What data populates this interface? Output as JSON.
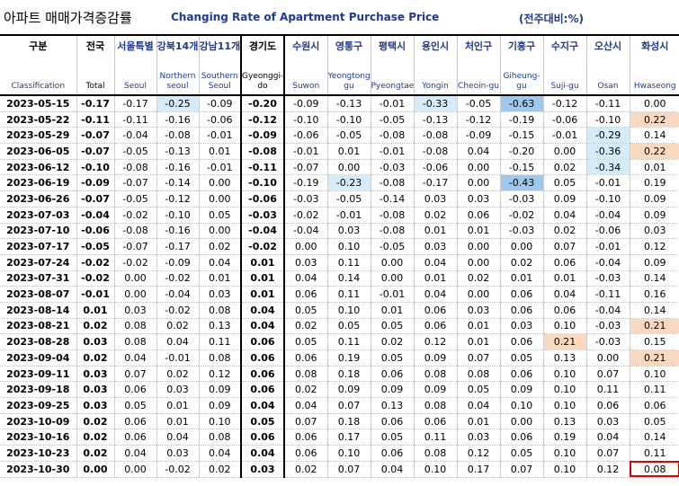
{
  "title": {
    "korean": "아파트 매매가격증감률",
    "english": "Changing Rate of Apartment Purchase Price",
    "unit": "(전주대비:%)"
  },
  "chart_data": {
    "type": "table",
    "columns": [
      {
        "ko": "구분",
        "en": "Classification"
      },
      {
        "ko": "전국",
        "en": "Total"
      },
      {
        "ko": "서울특별",
        "en": "Seoul"
      },
      {
        "ko": "강북14개",
        "en": "Northern seoul"
      },
      {
        "ko": "강남11개",
        "en": "Southern Seoul"
      },
      {
        "ko": "경기도",
        "en": "Gyeonggi-do"
      },
      {
        "ko": "수원시",
        "en": "Suwon"
      },
      {
        "ko": "영통구",
        "en": "Yeongtong-gu"
      },
      {
        "ko": "평택시",
        "en": "Pyeongtaek"
      },
      {
        "ko": "용인시",
        "en": "Yongin"
      },
      {
        "ko": "처인구",
        "en": "Cheoin-gu"
      },
      {
        "ko": "기흥구",
        "en": "Giheung-gu"
      },
      {
        "ko": "수지구",
        "en": "Suji-gu"
      },
      {
        "ko": "오산시",
        "en": "Osan"
      },
      {
        "ko": "화성시",
        "en": "Hwaseong"
      }
    ],
    "rows": [
      {
        "date": "2023-05-15",
        "values": [
          "-0.17",
          "-0.17",
          "-0.25",
          "-0.09",
          "-0.20",
          "-0.09",
          "-0.13",
          "-0.01",
          "-0.33",
          "-0.05",
          "-0.63",
          "-0.12",
          "-0.11",
          "0.00"
        ]
      },
      {
        "date": "2023-05-22",
        "values": [
          "-0.11",
          "-0.11",
          "-0.16",
          "-0.06",
          "-0.12",
          "-0.10",
          "-0.10",
          "-0.05",
          "-0.13",
          "-0.12",
          "-0.19",
          "-0.06",
          "-0.10",
          "0.22"
        ]
      },
      {
        "date": "2023-05-29",
        "values": [
          "-0.07",
          "-0.04",
          "-0.08",
          "-0.01",
          "-0.09",
          "-0.06",
          "-0.05",
          "-0.08",
          "-0.08",
          "-0.09",
          "-0.15",
          "-0.01",
          "-0.29",
          "0.14"
        ]
      },
      {
        "date": "2023-06-05",
        "values": [
          "-0.07",
          "-0.05",
          "-0.13",
          "0.01",
          "-0.08",
          "-0.01",
          "0.01",
          "-0.01",
          "-0.08",
          "0.04",
          "-0.20",
          "0.00",
          "-0.36",
          "0.22"
        ]
      },
      {
        "date": "2023-06-12",
        "values": [
          "-0.10",
          "-0.08",
          "-0.16",
          "-0.01",
          "-0.11",
          "-0.07",
          "0.00",
          "-0.03",
          "-0.06",
          "0.00",
          "-0.15",
          "0.02",
          "-0.34",
          "0.01"
        ]
      },
      {
        "date": "2023-06-19",
        "values": [
          "-0.09",
          "-0.07",
          "-0.14",
          "0.00",
          "-0.10",
          "-0.19",
          "-0.23",
          "-0.08",
          "-0.17",
          "0.00",
          "-0.43",
          "0.05",
          "-0.01",
          "0.19"
        ]
      },
      {
        "date": "2023-06-26",
        "values": [
          "-0.07",
          "-0.05",
          "-0.12",
          "0.00",
          "-0.06",
          "-0.03",
          "-0.05",
          "-0.14",
          "0.03",
          "0.03",
          "-0.03",
          "0.09",
          "-0.10",
          "0.09"
        ]
      },
      {
        "date": "2023-07-03",
        "values": [
          "-0.04",
          "-0.02",
          "-0.10",
          "0.05",
          "-0.03",
          "-0.02",
          "-0.01",
          "-0.08",
          "0.02",
          "0.06",
          "-0.02",
          "0.04",
          "-0.04",
          "0.09"
        ]
      },
      {
        "date": "2023-07-10",
        "values": [
          "-0.06",
          "-0.08",
          "-0.16",
          "0.00",
          "-0.04",
          "-0.04",
          "0.03",
          "-0.08",
          "0.01",
          "0.01",
          "-0.03",
          "0.02",
          "-0.06",
          "0.03"
        ]
      },
      {
        "date": "2023-07-17",
        "values": [
          "-0.05",
          "-0.07",
          "-0.17",
          "0.02",
          "-0.02",
          "0.00",
          "0.10",
          "-0.05",
          "0.03",
          "0.00",
          "0.00",
          "0.07",
          "-0.01",
          "0.12"
        ]
      },
      {
        "date": "2023-07-24",
        "values": [
          "-0.02",
          "-0.02",
          "-0.09",
          "0.04",
          "0.01",
          "0.03",
          "0.11",
          "0.00",
          "0.04",
          "0.00",
          "0.02",
          "0.06",
          "-0.04",
          "0.09"
        ]
      },
      {
        "date": "2023-07-31",
        "values": [
          "-0.02",
          "0.00",
          "-0.02",
          "0.01",
          "0.01",
          "0.04",
          "0.14",
          "0.00",
          "0.01",
          "0.02",
          "0.01",
          "0.01",
          "-0.03",
          "0.14"
        ]
      },
      {
        "date": "2023-08-07",
        "values": [
          "-0.01",
          "0.00",
          "-0.04",
          "0.03",
          "0.01",
          "0.06",
          "0.11",
          "-0.01",
          "0.04",
          "0.00",
          "0.06",
          "0.04",
          "-0.11",
          "0.16"
        ]
      },
      {
        "date": "2023-08-14",
        "values": [
          "0.01",
          "0.03",
          "-0.02",
          "0.08",
          "0.04",
          "0.05",
          "0.10",
          "0.01",
          "0.06",
          "0.03",
          "0.06",
          "0.06",
          "-0.04",
          "0.14"
        ]
      },
      {
        "date": "2023-08-21",
        "values": [
          "0.02",
          "0.08",
          "0.02",
          "0.13",
          "0.04",
          "0.02",
          "0.05",
          "0.05",
          "0.06",
          "0.01",
          "0.03",
          "0.10",
          "-0.03",
          "0.21"
        ]
      },
      {
        "date": "2023-08-28",
        "values": [
          "0.03",
          "0.08",
          "0.04",
          "0.11",
          "0.06",
          "0.05",
          "0.11",
          "0.02",
          "0.12",
          "0.01",
          "0.06",
          "0.21",
          "-0.03",
          "0.15"
        ]
      },
      {
        "date": "2023-09-04",
        "values": [
          "0.02",
          "0.04",
          "-0.01",
          "0.08",
          "0.06",
          "0.06",
          "0.19",
          "0.05",
          "0.09",
          "0.07",
          "0.05",
          "0.13",
          "0.00",
          "0.21"
        ]
      },
      {
        "date": "2023-09-11",
        "values": [
          "0.03",
          "0.07",
          "0.02",
          "0.12",
          "0.06",
          "0.08",
          "0.18",
          "0.06",
          "0.08",
          "0.08",
          "0.06",
          "0.10",
          "0.07",
          "0.10"
        ]
      },
      {
        "date": "2023-09-18",
        "values": [
          "0.03",
          "0.06",
          "0.03",
          "0.09",
          "0.06",
          "0.02",
          "0.09",
          "0.09",
          "0.09",
          "0.05",
          "0.09",
          "0.10",
          "0.11",
          "0.11"
        ]
      },
      {
        "date": "2023-09-25",
        "values": [
          "0.03",
          "0.05",
          "0.01",
          "0.09",
          "0.04",
          "0.04",
          "0.07",
          "0.13",
          "0.08",
          "0.04",
          "0.10",
          "0.10",
          "0.06",
          "0.06"
        ]
      },
      {
        "date": "2023-10-09",
        "values": [
          "0.02",
          "0.06",
          "0.01",
          "0.10",
          "0.05",
          "0.07",
          "0.18",
          "0.06",
          "0.06",
          "0.01",
          "0.00",
          "0.13",
          "0.03",
          "0.05"
        ]
      },
      {
        "date": "2023-10-16",
        "values": [
          "0.02",
          "0.06",
          "0.04",
          "0.08",
          "0.06",
          "0.06",
          "0.17",
          "0.05",
          "0.11",
          "0.03",
          "0.06",
          "0.19",
          "0.04",
          "0.14"
        ]
      },
      {
        "date": "2023-10-23",
        "values": [
          "0.02",
          "0.04",
          "0.03",
          "0.04",
          "0.04",
          "0.06",
          "0.10",
          "0.06",
          "0.08",
          "0.12",
          "0.05",
          "0.10",
          "0.07",
          "0.11"
        ]
      },
      {
        "date": "2023-10-30",
        "values": [
          "0.00",
          "0.00",
          "-0.02",
          "0.02",
          "0.03",
          "0.02",
          "0.07",
          "0.04",
          "0.10",
          "0.17",
          "0.07",
          "0.10",
          "0.12",
          "0.08"
        ]
      }
    ]
  },
  "highlights": [
    {
      "row": 0,
      "col": 3,
      "color": "#d6ebfa"
    },
    {
      "row": 0,
      "col": 9,
      "color": "#d6ebfa"
    },
    {
      "row": 0,
      "col": 11,
      "color": "#9fc8ef"
    },
    {
      "row": 1,
      "col": 14,
      "color": "#fbd9c0"
    },
    {
      "row": 2,
      "col": 13,
      "color": "#d6ebfa"
    },
    {
      "row": 3,
      "col": 13,
      "color": "#d6ebfa"
    },
    {
      "row": 3,
      "col": 14,
      "color": "#fbd9c0"
    },
    {
      "row": 4,
      "col": 13,
      "color": "#d6ebfa"
    },
    {
      "row": 5,
      "col": 7,
      "color": "#d6ebfa"
    },
    {
      "row": 5,
      "col": 11,
      "color": "#9fc8ef"
    },
    {
      "row": 14,
      "col": 14,
      "color": "#fbd9c0"
    },
    {
      "row": 15,
      "col": 12,
      "color": "#fbd9c0"
    },
    {
      "row": 16,
      "col": 14,
      "color": "#fbd9c0"
    }
  ],
  "boxed_cell": {
    "row": 23,
    "col": 14,
    "color": "#e00000"
  }
}
